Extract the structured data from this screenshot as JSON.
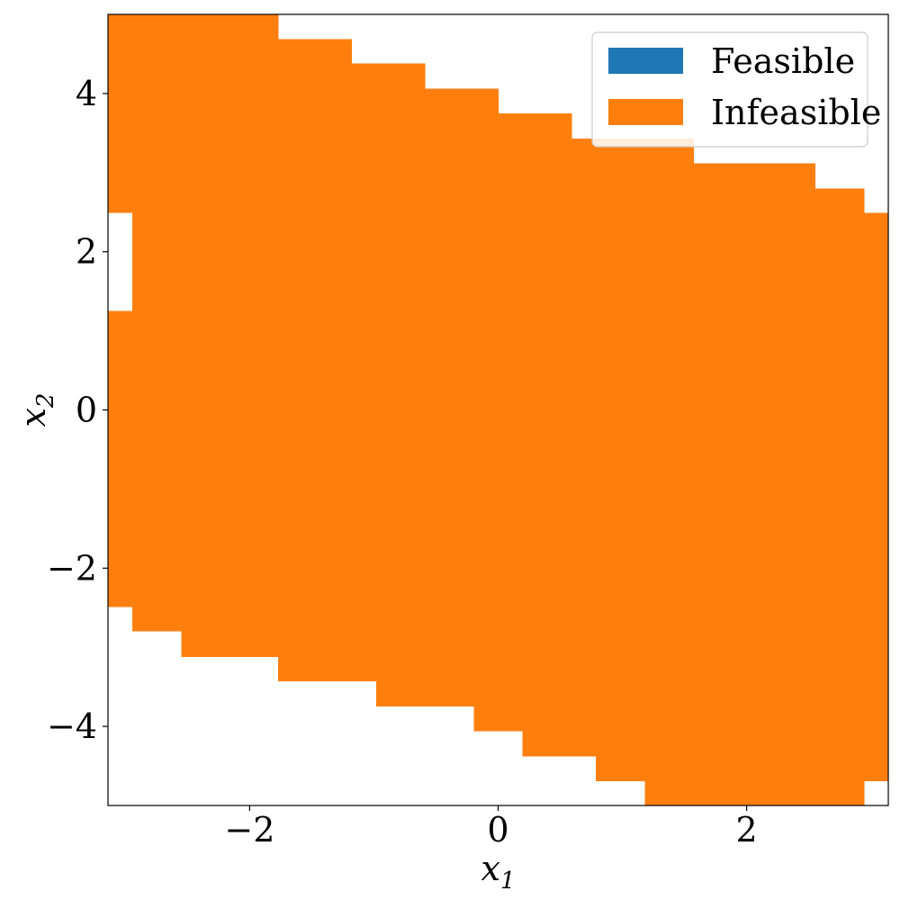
{
  "chart_data": {
    "type": "heatmap",
    "title": "",
    "xlabel": "x",
    "xlabel_sub": "1",
    "ylabel": "x",
    "ylabel_sub": "2",
    "xlim": [
      -3.14,
      3.14
    ],
    "ylim": [
      -5,
      5
    ],
    "xticks": [
      {
        "value": -2,
        "label": "−2"
      },
      {
        "value": 0,
        "label": "0"
      },
      {
        "value": 2,
        "label": "2"
      }
    ],
    "yticks": [
      {
        "value": -4,
        "label": "−4"
      },
      {
        "value": -2,
        "label": "−2"
      },
      {
        "value": 0,
        "label": "0"
      },
      {
        "value": 2,
        "label": "2"
      },
      {
        "value": 4,
        "label": "4"
      }
    ],
    "legend": {
      "placement": "top-right",
      "entries": [
        {
          "label": "Feasible",
          "color": "#1f77b4"
        },
        {
          "label": "Infeasible",
          "color": "#ff7f0e"
        }
      ]
    },
    "classes": {
      "Infeasible": {
        "color": "#ff7f0e",
        "columns": [
          {
            "x0": -3.14,
            "x1": -2.945,
            "y0": -2.49,
            "y1": 1.25
          },
          {
            "x0": -3.14,
            "x1": -2.945,
            "y0": 2.49,
            "y1": 5.0
          },
          {
            "x0": -2.945,
            "x1": -2.55,
            "y0": -2.8,
            "y1": 5.0
          },
          {
            "x0": -2.55,
            "x1": -1.77,
            "y0": -3.12,
            "y1": 5.0
          },
          {
            "x0": -1.77,
            "x1": -1.18,
            "y0": -3.43,
            "y1": 4.69
          },
          {
            "x0": -1.18,
            "x1": -0.98,
            "y0": -3.43,
            "y1": 4.38
          },
          {
            "x0": -0.98,
            "x1": -0.59,
            "y0": -3.75,
            "y1": 4.38
          },
          {
            "x0": -0.59,
            "x1": -0.195,
            "y0": -3.75,
            "y1": 4.06
          },
          {
            "x0": -0.195,
            "x1": 0.0,
            "y0": -4.06,
            "y1": 4.06
          },
          {
            "x0": 0.0,
            "x1": 0.195,
            "y0": -4.06,
            "y1": 3.75
          },
          {
            "x0": 0.195,
            "x1": 0.59,
            "y0": -4.38,
            "y1": 3.75
          },
          {
            "x0": 0.59,
            "x1": 0.785,
            "y0": -4.38,
            "y1": 3.43
          },
          {
            "x0": 0.785,
            "x1": 1.18,
            "y0": -4.69,
            "y1": 3.43
          },
          {
            "x0": 1.18,
            "x1": 1.57,
            "y0": -5.0,
            "y1": 3.43
          },
          {
            "x0": 1.57,
            "x1": 2.55,
            "y0": -5.0,
            "y1": 3.12
          },
          {
            "x0": 2.55,
            "x1": 2.945,
            "y0": -5.0,
            "y1": 2.8
          },
          {
            "x0": 2.945,
            "x1": 3.14,
            "y0": -4.69,
            "y1": 2.49
          }
        ]
      },
      "Feasible": {
        "color": "#1f77b4",
        "columns": []
      }
    }
  }
}
